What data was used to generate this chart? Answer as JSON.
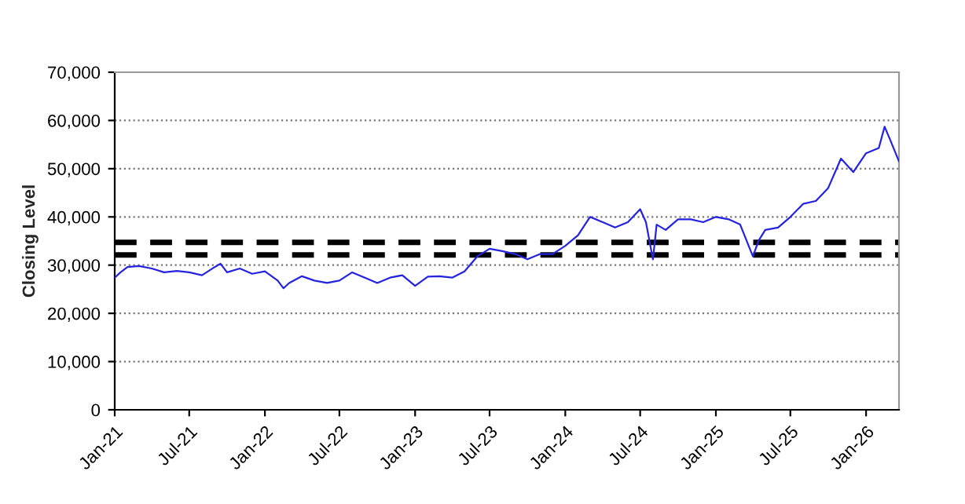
{
  "chart_data": {
    "type": "line",
    "ylabel": "Closing Level",
    "x": [
      "2021-01-01",
      "2021-01-15",
      "2021-02",
      "2021-03",
      "2021-04",
      "2021-05",
      "2021-06",
      "2021-07",
      "2021-08",
      "2021-09",
      "2021-09-15",
      "2021-10",
      "2021-11",
      "2021-12",
      "2022-01",
      "2022-02",
      "2022-02-15",
      "2022-03",
      "2022-04",
      "2022-05",
      "2022-06",
      "2022-07",
      "2022-08",
      "2022-09",
      "2022-10",
      "2022-11",
      "2022-12",
      "2023-01",
      "2023-02",
      "2023-03",
      "2023-04",
      "2023-05",
      "2023-06",
      "2023-07",
      "2023-08",
      "2023-09",
      "2023-10",
      "2023-11",
      "2023-12",
      "2024-01",
      "2024-02",
      "2024-03",
      "2024-04",
      "2024-05",
      "2024-06",
      "2024-07",
      "2024-07-15",
      "2024-08",
      "2024-08-10",
      "2024-09",
      "2024-10",
      "2024-11",
      "2024-12",
      "2025-01",
      "2025-02",
      "2025-03",
      "2025-04",
      "2025-04-15",
      "2025-05",
      "2025-06",
      "2025-07",
      "2025-08",
      "2025-09",
      "2025-10",
      "2025-11",
      "2025-12",
      "2026-01",
      "2026-02",
      "2026-02-15",
      "2026-03",
      "2026-03-22"
    ],
    "series": [
      {
        "color": "#2424e0",
        "values": [
          27400,
          28500,
          29600,
          29800,
          29300,
          28500,
          28800,
          28500,
          27900,
          29600,
          30300,
          28500,
          29300,
          28200,
          28700,
          26800,
          25200,
          26300,
          27700,
          26800,
          26300,
          26800,
          28500,
          27400,
          26300,
          27400,
          27900,
          25700,
          27600,
          27700,
          27400,
          28700,
          31800,
          33400,
          32900,
          32300,
          31200,
          32300,
          32300,
          34000,
          36200,
          40000,
          38900,
          37800,
          38900,
          41600,
          38900,
          31200,
          38400,
          37300,
          39500,
          39500,
          38900,
          40000,
          39500,
          38400,
          31800,
          35100,
          37300,
          37800,
          40000,
          42700,
          43300,
          46000,
          52100,
          49300,
          53200,
          54300,
          58700,
          55900,
          51500
        ]
      }
    ],
    "xlim": [
      "2021-01-01",
      "2026-03-22"
    ],
    "xticks": [
      {
        "value": "2021-01",
        "label": "Jan-21"
      },
      {
        "value": "2021-07",
        "label": "Jul-21"
      },
      {
        "value": "2022-01",
        "label": "Jan-22"
      },
      {
        "value": "2022-07",
        "label": "Jul-22"
      },
      {
        "value": "2023-01",
        "label": "Jan-23"
      },
      {
        "value": "2023-07",
        "label": "Jul-23"
      },
      {
        "value": "2024-01",
        "label": "Jan-24"
      },
      {
        "value": "2024-07",
        "label": "Jul-24"
      },
      {
        "value": "2025-01",
        "label": "Jan-25"
      },
      {
        "value": "2025-07",
        "label": "Jul-25"
      },
      {
        "value": "2026-01",
        "label": "Jan-26"
      }
    ],
    "ylim": [
      0,
      70000
    ],
    "yticks": [
      0,
      {
        "value": 10000,
        "label": "10,000"
      },
      {
        "value": 20000,
        "label": "20,000"
      },
      {
        "value": 30000,
        "label": "30,000"
      },
      {
        "value": 40000,
        "label": "40,000"
      },
      {
        "value": 50000,
        "label": "50,000"
      },
      {
        "value": 60000,
        "label": "60,000"
      },
      {
        "value": 70000,
        "label": "70,000"
      }
    ],
    "ref_lines": [
      {
        "axis": "y",
        "value": 34700,
        "color": "#000000",
        "line_style": "dashed"
      },
      {
        "axis": "y",
        "value": 32100,
        "color": "#000000",
        "line_style": "dashed"
      }
    ],
    "grid": "y",
    "legend": false
  }
}
